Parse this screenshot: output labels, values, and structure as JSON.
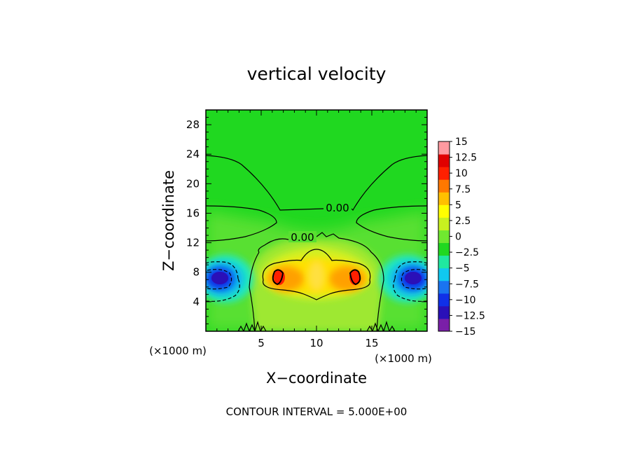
{
  "chart_data": {
    "type": "heatmap",
    "title": "vertical velocity",
    "xlabel": "X−coordinate",
    "ylabel": "Z−coordinate",
    "x_unit_label": "(×1000 m)",
    "y_unit_label": "(×1000 m)",
    "xlim": [
      0,
      20
    ],
    "ylim": [
      0,
      30
    ],
    "x_ticks": [
      5,
      10,
      15
    ],
    "y_ticks": [
      4,
      8,
      12,
      16,
      20,
      24,
      28
    ],
    "contour_labels": [
      "0.00",
      "0.00"
    ],
    "footer": "CONTOUR INTERVAL = 5.000E+00",
    "colorbar": {
      "tick_labels": [
        "15",
        "12.5",
        "10",
        "7.5",
        "5",
        "2.5",
        "0",
        "−2.5",
        "−5",
        "−7.5",
        "−10",
        "−12.5",
        "−15"
      ],
      "colors": [
        "#7a1fa8",
        "#2a10b8",
        "#1030e8",
        "#1a74f0",
        "#10c8f0",
        "#20e8a0",
        "#20d820",
        "#70e830",
        "#c8f020",
        "#ffff00",
        "#ffc000",
        "#ff7800",
        "#ff2000",
        "#e00000",
        "#ff9aa0"
      ]
    }
  }
}
